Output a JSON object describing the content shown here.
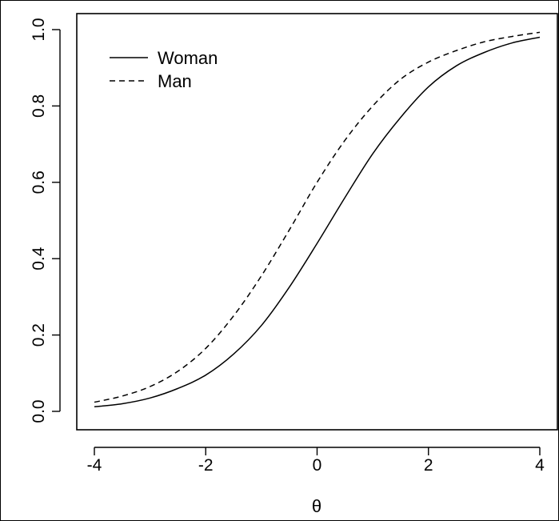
{
  "chart_data": {
    "type": "line",
    "xlabel": "θ",
    "ylabel": "",
    "xlim": [
      -4,
      4
    ],
    "ylim": [
      0,
      1
    ],
    "xticks": [
      -4,
      -2,
      0,
      2,
      4
    ],
    "yticks": [
      0.0,
      0.2,
      0.4,
      0.6,
      0.8,
      1.0
    ],
    "xtick_labels": [
      "-4",
      "-2",
      "0",
      "2",
      "4"
    ],
    "ytick_labels": [
      "0.0",
      "0.2",
      "0.4",
      "0.6",
      "0.8",
      "1.0"
    ],
    "legend_position": "top-left",
    "grid": false,
    "series": [
      {
        "name": "Woman",
        "line_style": "solid",
        "x": [
          -4,
          -3.5,
          -3,
          -2.5,
          -2,
          -1.5,
          -1,
          -0.5,
          0,
          0.5,
          1,
          1.5,
          2,
          2.5,
          3,
          3.5,
          4
        ],
        "y": [
          0.012,
          0.02,
          0.035,
          0.06,
          0.095,
          0.15,
          0.225,
          0.325,
          0.44,
          0.56,
          0.675,
          0.77,
          0.85,
          0.905,
          0.94,
          0.965,
          0.98
        ]
      },
      {
        "name": "Man",
        "line_style": "dashed",
        "x": [
          -4,
          -3.5,
          -3,
          -2.5,
          -2,
          -1.5,
          -1,
          -0.5,
          0,
          0.5,
          1,
          1.5,
          2,
          2.5,
          3,
          3.5,
          4
        ],
        "y": [
          0.024,
          0.04,
          0.065,
          0.105,
          0.165,
          0.25,
          0.355,
          0.475,
          0.6,
          0.71,
          0.8,
          0.87,
          0.915,
          0.945,
          0.968,
          0.982,
          0.993
        ]
      }
    ]
  }
}
